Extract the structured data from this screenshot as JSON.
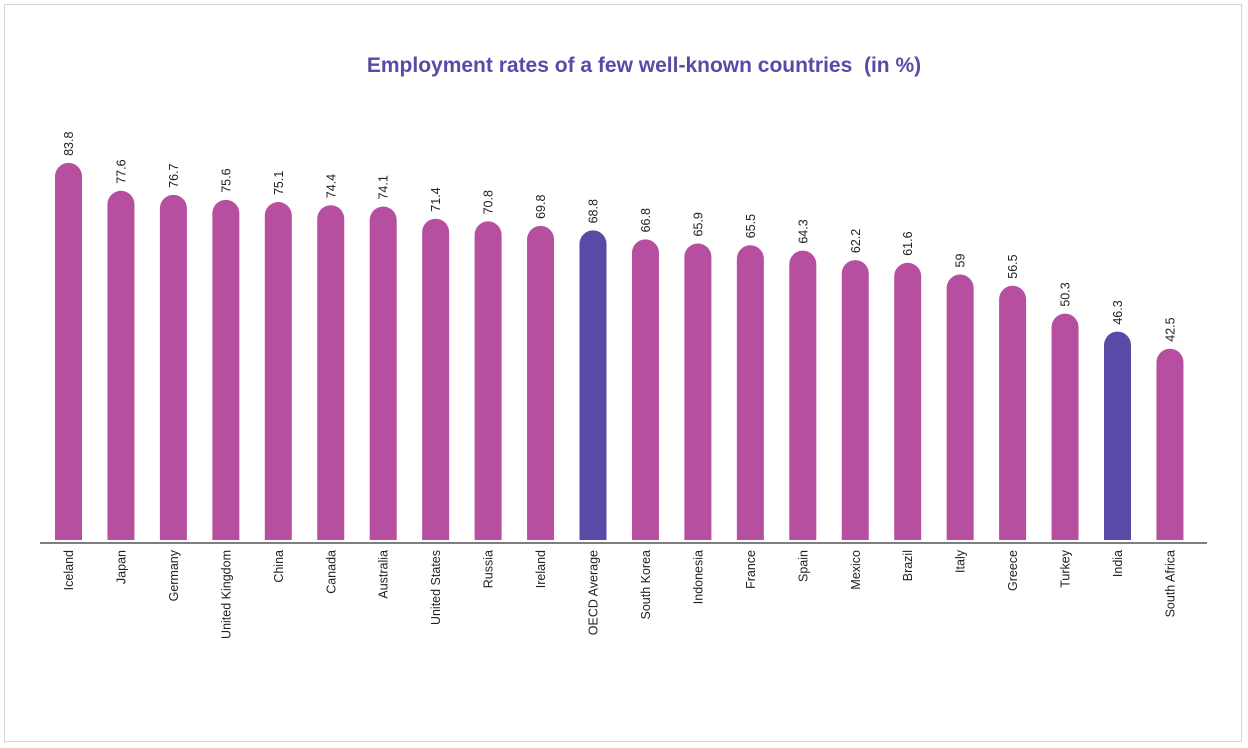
{
  "chart_data": {
    "type": "bar",
    "title": "Employment rates of a few well-known countries  (in %)",
    "xlabel": "",
    "ylabel": "",
    "ylim": [
      0,
      90
    ],
    "grid": false,
    "categories": [
      "Iceland",
      "Japan",
      "Germany",
      "United Kingdom",
      "China",
      "Canada",
      "Australia",
      "United States",
      "Russia",
      "Ireland",
      "OECD Average",
      "South Korea",
      "Indonesia",
      "France",
      "Spain",
      "Mexico",
      "Brazil",
      "Italy",
      "Greece",
      "Turkey",
      "India",
      "South Africa"
    ],
    "values": [
      83.8,
      77.6,
      76.7,
      75.6,
      75.1,
      74.4,
      74.1,
      71.4,
      70.8,
      69.8,
      68.8,
      66.8,
      65.9,
      65.5,
      64.3,
      62.2,
      61.6,
      59,
      56.5,
      50.3,
      46.3,
      42.5
    ],
    "value_labels": [
      "83.8",
      "77.6",
      "76.7",
      "75.6",
      "75.1",
      "74.4",
      "74.1",
      "71.4",
      "70.8",
      "69.8",
      "68.8",
      "66.8",
      "65.9",
      "65.5",
      "64.3",
      "62.2",
      "61.6",
      "59",
      "56.5",
      "50.3",
      "46.3",
      "42.5"
    ],
    "colors": {
      "default": "#b64fa0",
      "highlight": "#5a49a6",
      "highlighted_categories": [
        "OECD Average",
        "India"
      ],
      "title": "#5a49a6",
      "axis": "#555555"
    }
  }
}
